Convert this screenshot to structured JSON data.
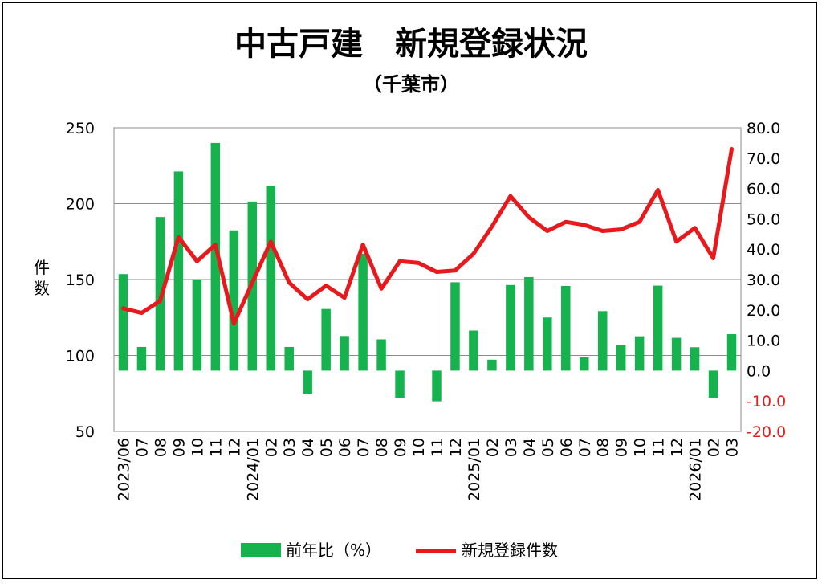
{
  "chart_data": {
    "type": "bar+line",
    "title": "中古戸建　新規登録状況",
    "subtitle": "（千葉市）",
    "left_axis": {
      "label": "件数",
      "min": 50,
      "max": 250,
      "ticks": [
        "250",
        "200",
        "150",
        "100",
        "50"
      ]
    },
    "right_axis": {
      "min": -20,
      "max": 80,
      "ticks": [
        "80.0",
        "70.0",
        "60.0",
        "50.0",
        "40.0",
        "30.0",
        "20.0",
        "10.0",
        "0.0",
        "-10.0",
        "-20.0"
      ]
    },
    "grid": true,
    "categories": [
      "2023/06",
      "07",
      "08",
      "09",
      "10",
      "11",
      "12",
      "2024/01",
      "02",
      "03",
      "04",
      "05",
      "06",
      "07",
      "08",
      "09",
      "10",
      "11",
      "12",
      "2025/01",
      "02",
      "03",
      "04",
      "05",
      "06",
      "07",
      "08",
      "09",
      "10",
      "11",
      "12",
      "2026/01",
      "02",
      "03"
    ],
    "series": [
      {
        "name": "前年比（%）",
        "type": "bar",
        "axis": "right",
        "color": "#16b24e",
        "values": [
          31.8,
          7.8,
          50.6,
          65.6,
          30.1,
          75.0,
          46.2,
          55.7,
          60.8,
          7.8,
          -7.6,
          20.3,
          11.4,
          38.5,
          10.3,
          -8.9,
          0,
          -10.1,
          29.1,
          13.2,
          3.6,
          28.2,
          30.8,
          17.5,
          27.9,
          4.4,
          19.6,
          8.5,
          11.3,
          28.0,
          10.8,
          7.7,
          -8.9,
          12.0
        ]
      },
      {
        "name": "新規登録件数",
        "type": "line",
        "axis": "left",
        "color": "#e8191c",
        "values": [
          131,
          128,
          136,
          178,
          162,
          173,
          121,
          148,
          175,
          148,
          137,
          146,
          138,
          173,
          144,
          162,
          161,
          155,
          156,
          167,
          185,
          205,
          191,
          182,
          188,
          186,
          182,
          183,
          188,
          209,
          175,
          184,
          164,
          236
        ]
      }
    ],
    "legend": {
      "position": "bottom"
    }
  }
}
